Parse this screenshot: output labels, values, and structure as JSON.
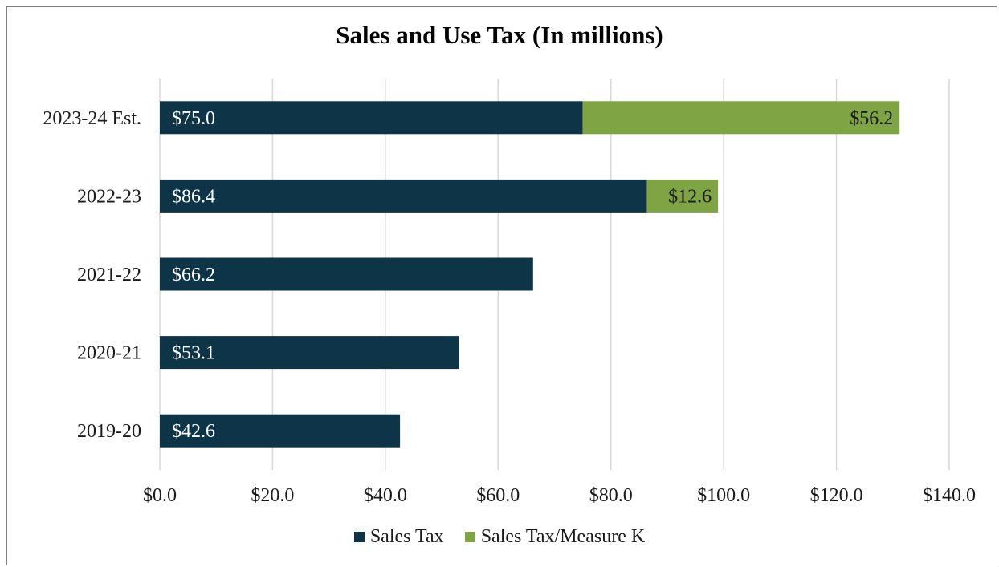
{
  "chart_data": {
    "type": "bar",
    "orientation": "horizontal",
    "stacked": true,
    "title": "Sales and Use Tax (In millions)",
    "categories": [
      "2023-24 Est.",
      "2022-23",
      "2021-22",
      "2020-21",
      "2019-20"
    ],
    "series": [
      {
        "name": "Sales Tax",
        "color": "#0e3447",
        "values": [
          75.0,
          86.4,
          66.2,
          53.1,
          42.6
        ],
        "labels": [
          "$75.0",
          "$86.4",
          "$66.2",
          "$53.1",
          "$42.6"
        ]
      },
      {
        "name": "Sales Tax/Measure K",
        "color": "#7ea443",
        "values": [
          56.2,
          12.6,
          null,
          null,
          null
        ],
        "labels": [
          "$56.2",
          "$12.6",
          null,
          null,
          null
        ]
      }
    ],
    "xlim": [
      0,
      140
    ],
    "x_ticks": [
      0,
      20,
      40,
      60,
      80,
      100,
      120,
      140
    ],
    "x_tick_labels": [
      "$0.0",
      "$20.0",
      "$40.0",
      "$60.0",
      "$80.0",
      "$100.0",
      "$120.0",
      "$140.0"
    ],
    "grid": "vertical",
    "legend_position": "bottom"
  }
}
